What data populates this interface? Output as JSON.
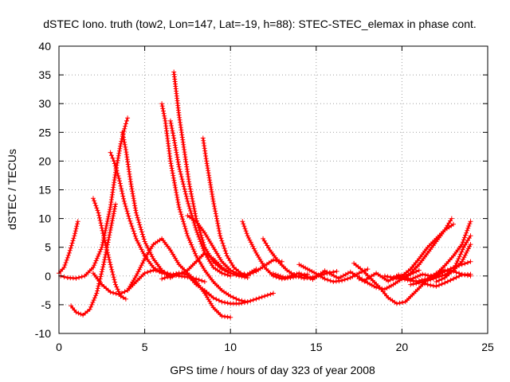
{
  "chart_data": {
    "type": "line",
    "title": "dSTEC Iono. truth (tow2, Lon=147, Lat=-19, h=88): STEC-STEC_elemax in phase cont.",
    "xlabel": "GPS time / hours of day 323 of year 2008",
    "ylabel": "dSTEC  / TECUs",
    "xlim": [
      0,
      25
    ],
    "ylim": [
      -10,
      40
    ],
    "xticks": [
      "0",
      "5",
      "10",
      "15",
      "20",
      "25"
    ],
    "yticks": [
      "-10",
      "-5",
      "0",
      "5",
      "10",
      "15",
      "20",
      "25",
      "30",
      "35",
      "40"
    ],
    "grid": true,
    "legend": "none",
    "marker": "plus",
    "series_color": "#ff0000",
    "series": [
      {
        "x": [
          0,
          0.3,
          0.6,
          0.9,
          1.1
        ],
        "y": [
          0.5,
          1.5,
          4,
          7,
          9.5
        ]
      },
      {
        "x": [
          0.1,
          0.5,
          1.0,
          1.5,
          2.0,
          2.5,
          3.0,
          3.3,
          3.6,
          3.9,
          4.0
        ],
        "y": [
          0,
          -0.3,
          -0.4,
          0,
          1.5,
          5,
          12,
          18,
          23,
          26.5,
          27.5
        ]
      },
      {
        "x": [
          0.7,
          1.0,
          1.4,
          1.8,
          2.2,
          2.6,
          3.0,
          3.3
        ],
        "y": [
          -5.2,
          -6.3,
          -6.8,
          -5.8,
          -3,
          2,
          8,
          12.5
        ]
      },
      {
        "x": [
          2.0,
          2.3,
          2.6,
          3.0,
          3.3,
          3.6,
          3.9
        ],
        "y": [
          13.5,
          11,
          7,
          2,
          -1.5,
          -3.5,
          -4
        ]
      },
      {
        "x": [
          3.0,
          3.2,
          3.5,
          3.8,
          4.1,
          4.5,
          5.0,
          5.5,
          6.0,
          6.5,
          7.0
        ],
        "y": [
          21.5,
          20,
          17,
          13,
          10,
          6.5,
          3.5,
          1.5,
          0.5,
          0.2,
          0.5
        ]
      },
      {
        "x": [
          3.7,
          3.9,
          4.2,
          4.5,
          5.0,
          5.5,
          6.0,
          6.5,
          7.0,
          7.5,
          8.0,
          8.5,
          9.0,
          9.5,
          10.0,
          10.5,
          11.0
        ],
        "y": [
          25,
          22,
          16,
          11,
          6,
          3,
          1,
          -0.3,
          0.5,
          0.2,
          -1.5,
          -2.5,
          -3.8,
          -4.5,
          -4.8,
          -4.8,
          -4.5
        ]
      },
      {
        "x": [
          2.0,
          2.5,
          3.0,
          3.5,
          4.0,
          4.5,
          5.0,
          5.5,
          6.0,
          6.5,
          7.0,
          7.5,
          8.0,
          8.5
        ],
        "y": [
          0.5,
          -1.5,
          -2.8,
          -3.2,
          -2.5,
          -1,
          0.5,
          1,
          0.8,
          0.3,
          0,
          -0.2,
          -0.5,
          -1
        ]
      },
      {
        "x": [
          4.0,
          4.5,
          5.0,
          5.5,
          6.0,
          6.5,
          7.0,
          7.5,
          8.0,
          8.5,
          9.0,
          9.5,
          10.0
        ],
        "y": [
          -2.5,
          0,
          3,
          5.5,
          6.5,
          4.5,
          2,
          0.5,
          -1,
          -3,
          -5.5,
          -7,
          -7.2
        ]
      },
      {
        "x": [
          6.0,
          6.2,
          6.5,
          7.0,
          7.5,
          8.0,
          8.5,
          9.0,
          9.5,
          10.0,
          10.5,
          11.0,
          11.5,
          12.0,
          12.5
        ],
        "y": [
          30,
          27,
          20,
          12,
          7,
          3.5,
          1,
          -1,
          -2.5,
          -3.5,
          -4.2,
          -4.5,
          -4,
          -3.5,
          -3
        ]
      },
      {
        "x": [
          6.0,
          6.5,
          7.0,
          7.5,
          8.0,
          8.5,
          9.0,
          9.5,
          10.0,
          10.5,
          11.0
        ],
        "y": [
          -0.5,
          0,
          0.3,
          1,
          2.5,
          4,
          3,
          1.5,
          0.5,
          0,
          -0.3
        ]
      },
      {
        "x": [
          6.7,
          6.8,
          7.0,
          7.3,
          7.6,
          8.0,
          8.5,
          9.0,
          9.5,
          10.0,
          10.5,
          11.0,
          11.5
        ],
        "y": [
          35.5,
          33,
          28,
          22,
          16,
          10,
          5,
          2.5,
          1.2,
          0.5,
          0,
          0.3,
          1.2
        ]
      },
      {
        "x": [
          6.5,
          6.7,
          7.0,
          7.5,
          8.0,
          8.5,
          9.0,
          9.5,
          10.0
        ],
        "y": [
          27,
          24,
          19,
          13,
          8,
          4,
          1.5,
          0.5,
          0
        ]
      },
      {
        "x": [
          8.4,
          8.6,
          9.0,
          9.4,
          9.8,
          10.2,
          10.6,
          11.0,
          11.5,
          12.0,
          12.5,
          13.0
        ],
        "y": [
          24,
          20,
          13,
          7,
          3.5,
          1.5,
          0.5,
          0.2,
          0.8,
          1.8,
          2.8,
          2.5
        ]
      },
      {
        "x": [
          7.5,
          8.0,
          8.5,
          9.0,
          9.5,
          10.0,
          10.5,
          11.0
        ],
        "y": [
          10.5,
          9.5,
          7.5,
          5,
          2.5,
          1,
          0.3,
          0
        ]
      },
      {
        "x": [
          10.7,
          11.0,
          11.5,
          12.0,
          12.5,
          13.0,
          13.5,
          14.0,
          14.5
        ],
        "y": [
          9.5,
          7,
          4,
          1.5,
          0,
          -0.5,
          -0.3,
          0,
          0.3
        ]
      },
      {
        "x": [
          11.9,
          12.3,
          12.8,
          13.3,
          13.8,
          14.3,
          14.8,
          15.3,
          15.8,
          16.2
        ],
        "y": [
          6.5,
          4.5,
          2.5,
          1,
          0,
          -0.4,
          -0.2,
          0.2,
          0.6,
          0.8
        ]
      },
      {
        "x": [
          12.5,
          13.2,
          14.0,
          14.8,
          15.5,
          16.3,
          17.0,
          17.8,
          18.5,
          19.2,
          19.8,
          20.5,
          21.2,
          22.0
        ],
        "y": [
          0.4,
          -0.3,
          0.5,
          -0.6,
          0.9,
          -0.4,
          0.7,
          -0.8,
          0.5,
          -0.9,
          0.2,
          -0.6,
          0.3,
          -0.2
        ]
      },
      {
        "x": [
          14.0,
          14.5,
          15.0,
          15.5,
          16.0,
          16.5,
          17.0,
          17.5,
          18.0
        ],
        "y": [
          2,
          1.2,
          0.4,
          -0.5,
          -1,
          -0.8,
          -0.3,
          0.5,
          1.2
        ]
      },
      {
        "x": [
          17.2,
          17.7,
          18.2,
          18.7,
          19.2,
          19.7,
          20.2,
          20.7,
          21.2,
          21.7,
          22.0
        ],
        "y": [
          2.2,
          1,
          -0.5,
          -2,
          -3.8,
          -4.8,
          -4.5,
          -3,
          -1.5,
          0,
          0.3
        ]
      },
      {
        "x": [
          17.5,
          18.0,
          18.5,
          19.0,
          19.5,
          20.0,
          20.5,
          21.0
        ],
        "y": [
          -0.5,
          -1.2,
          -2,
          -2.3,
          -1.5,
          -0.5,
          0.3,
          1
        ]
      },
      {
        "x": [
          19.0,
          19.5,
          20.0,
          20.5,
          21.0,
          21.5,
          22.0,
          22.5,
          23.0,
          23.5,
          24.0
        ],
        "y": [
          0,
          -0.3,
          -0.5,
          -0.8,
          -1,
          -1.5,
          -1.8,
          -1.2,
          -0.5,
          0.2,
          0.3
        ]
      },
      {
        "x": [
          19.5,
          20.0,
          20.5,
          21.0,
          21.5,
          22.0,
          22.5,
          23.0
        ],
        "y": [
          -0.5,
          0,
          1.2,
          3,
          5,
          6.5,
          8,
          9
        ]
      },
      {
        "x": [
          20.0,
          20.5,
          21.0,
          21.5,
          22.0,
          22.5,
          22.9
        ],
        "y": [
          -0.3,
          0.5,
          2,
          4,
          6,
          8,
          10
        ]
      },
      {
        "x": [
          21.5,
          22.0,
          22.5,
          23.0,
          23.5,
          24.0
        ],
        "y": [
          -0.5,
          0.3,
          1.8,
          3.5,
          5.5,
          9.5
        ]
      },
      {
        "x": [
          21.0,
          21.5,
          22.0,
          22.5,
          23.0,
          23.5,
          24.0
        ],
        "y": [
          -0.8,
          -0.5,
          0,
          0.8,
          1.5,
          2,
          2.5
        ]
      },
      {
        "x": [
          22.0,
          22.5,
          23.0,
          23.3,
          23.6,
          24.0
        ],
        "y": [
          -1,
          -0.3,
          1,
          3,
          5,
          7
        ]
      },
      {
        "x": [
          20.5,
          21.0,
          21.5,
          22.0,
          22.5,
          23.0,
          23.5,
          24.0
        ],
        "y": [
          -1.5,
          -1.2,
          -0.8,
          -0.3,
          0.2,
          1,
          2.5,
          5.5
        ]
      },
      {
        "x": [
          22.0,
          22.5,
          23.0,
          23.5,
          24.0
        ],
        "y": [
          0.5,
          1,
          0.8,
          0.3,
          0
        ]
      }
    ]
  }
}
